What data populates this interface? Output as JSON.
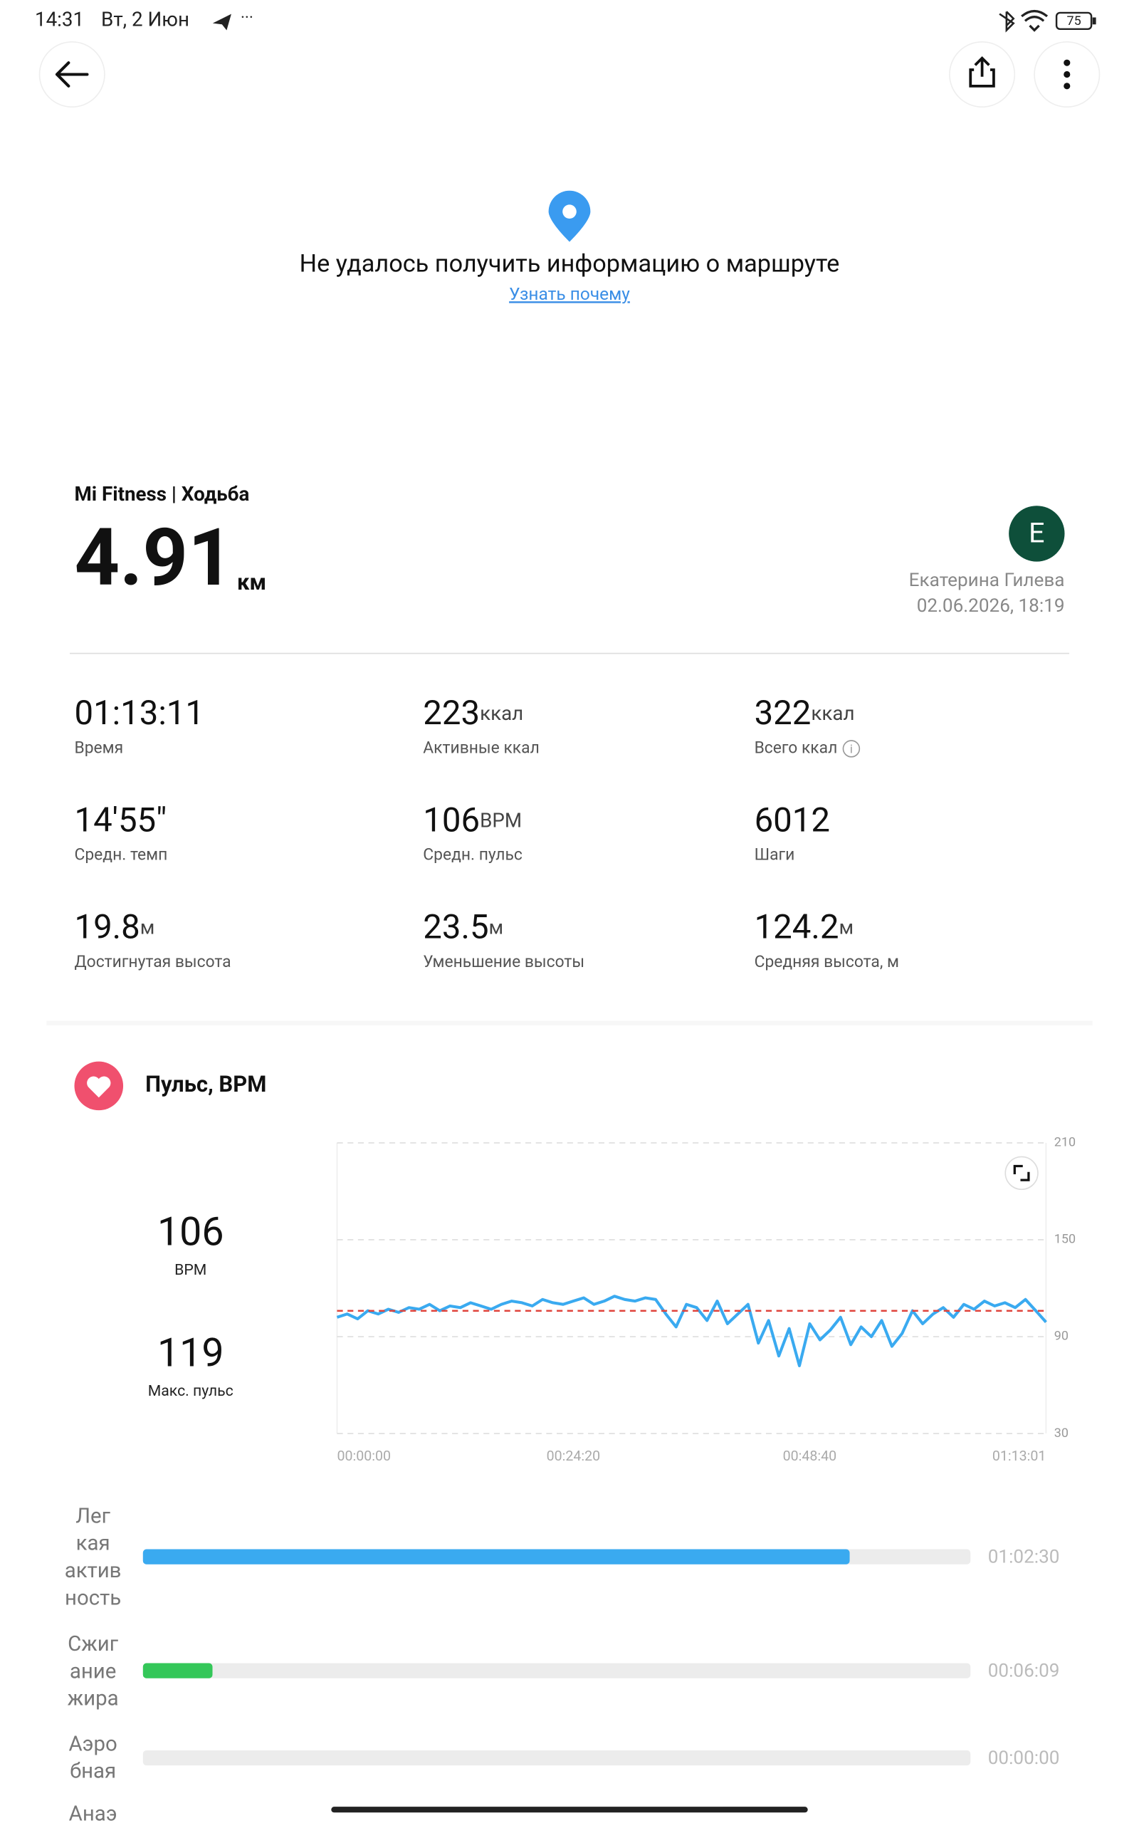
{
  "status": {
    "time": "14:31",
    "date": "Вт, 2 Июн",
    "battery": "75"
  },
  "route": {
    "message": "Не удалось получить информацию о маршруте",
    "link": "Узнать почему"
  },
  "workout": {
    "source": "Mi Fitness | Ходьба",
    "distance": "4.91",
    "unit": "км",
    "avatar": "E",
    "user": "Екатерина Гилева",
    "datetime": "02.06.2026, 18:19"
  },
  "stats": [
    {
      "value": "01:13:11",
      "label": "Время"
    },
    {
      "value": "223",
      "unit": "ккал",
      "label": "Активные ккал"
    },
    {
      "value": "322",
      "unit": "ккал",
      "label": "Всего ккал"
    },
    {
      "value": "14'55\"",
      "label": "Средн. темп"
    },
    {
      "value": "106",
      "unit": "BPM",
      "label": "Средн. пульс"
    },
    {
      "value": "6012",
      "label": "Шаги"
    },
    {
      "value": "19.8",
      "unit": "м",
      "label": "Достигнутая высота"
    },
    {
      "value": "23.5",
      "unit": "м",
      "label": "Уменьшение высоты"
    },
    {
      "value": "124.2",
      "unit": "м",
      "label": "Средняя высота, м"
    }
  ],
  "heart": {
    "title": "Пульс, BPM",
    "average": 106,
    "average_unit": "BPM",
    "max": 119,
    "max_label": "Макс. пульс",
    "chart": {
      "type": "line",
      "color": "#3aaaf0",
      "average_color": "#e0443c",
      "values": [
        102,
        104,
        101,
        106,
        104,
        107,
        105,
        108,
        107,
        110,
        106,
        109,
        108,
        111,
        109,
        107,
        110,
        112,
        111,
        109,
        113,
        111,
        110,
        112,
        114,
        110,
        112,
        115,
        113,
        112,
        114,
        113,
        104,
        96,
        110,
        108,
        100,
        112,
        98,
        104,
        110,
        86,
        100,
        78,
        95,
        72,
        98,
        88,
        94,
        102,
        85,
        96,
        90,
        100,
        84,
        92,
        106,
        98,
        104,
        108,
        102,
        110,
        107,
        112,
        109,
        111,
        108,
        113,
        106,
        99
      ],
      "ylim": [
        30,
        210
      ],
      "yticks": [
        30,
        90,
        150,
        210
      ],
      "grid": true,
      "xtick_labels": [
        "00:00:00",
        "00:24:20",
        "00:48:40",
        "01:13:01"
      ]
    }
  },
  "zones": [
    {
      "name_lines": [
        "Лег",
        "кая",
        "актив",
        "ность"
      ],
      "time": "01:02:30",
      "color": "#3aaaf0"
    },
    {
      "name_lines": [
        "Сжиг",
        "ание",
        "жира"
      ],
      "time": "00:06:09",
      "color": "#34c759"
    },
    {
      "name_lines": [
        "Аэро",
        "бная"
      ],
      "time": "00:00:00",
      "color": "#f5a623"
    },
    {
      "name_lines": [
        "Анаэ"
      ]
    }
  ]
}
